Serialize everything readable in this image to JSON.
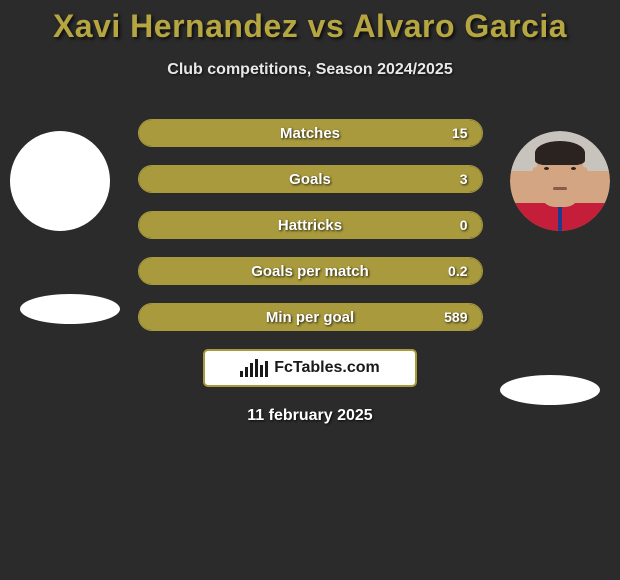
{
  "title": "Xavi Hernandez vs Alvaro Garcia",
  "subtitle": "Club competitions, Season 2024/2025",
  "date": "11 february 2025",
  "logoText": "FcTables.com",
  "colors": {
    "background": "#2b2b2b",
    "accent": "#a99a3d",
    "titleColor": "#b5a642",
    "white": "#ffffff"
  },
  "playerLeft": {
    "name": "Xavi Hernandez"
  },
  "playerRight": {
    "name": "Alvaro Garcia"
  },
  "stats": [
    {
      "label": "Matches",
      "valueLeft": "",
      "valueRight": "15",
      "fillRightPct": 100
    },
    {
      "label": "Goals",
      "valueLeft": "",
      "valueRight": "3",
      "fillRightPct": 100
    },
    {
      "label": "Hattricks",
      "valueLeft": "",
      "valueRight": "0",
      "fillRightPct": 100
    },
    {
      "label": "Goals per match",
      "valueLeft": "",
      "valueRight": "0.2",
      "fillRightPct": 100
    },
    {
      "label": "Min per goal",
      "valueLeft": "",
      "valueRight": "589",
      "fillRightPct": 100
    }
  ],
  "logoBars": [
    6,
    10,
    14,
    18,
    12,
    16
  ]
}
